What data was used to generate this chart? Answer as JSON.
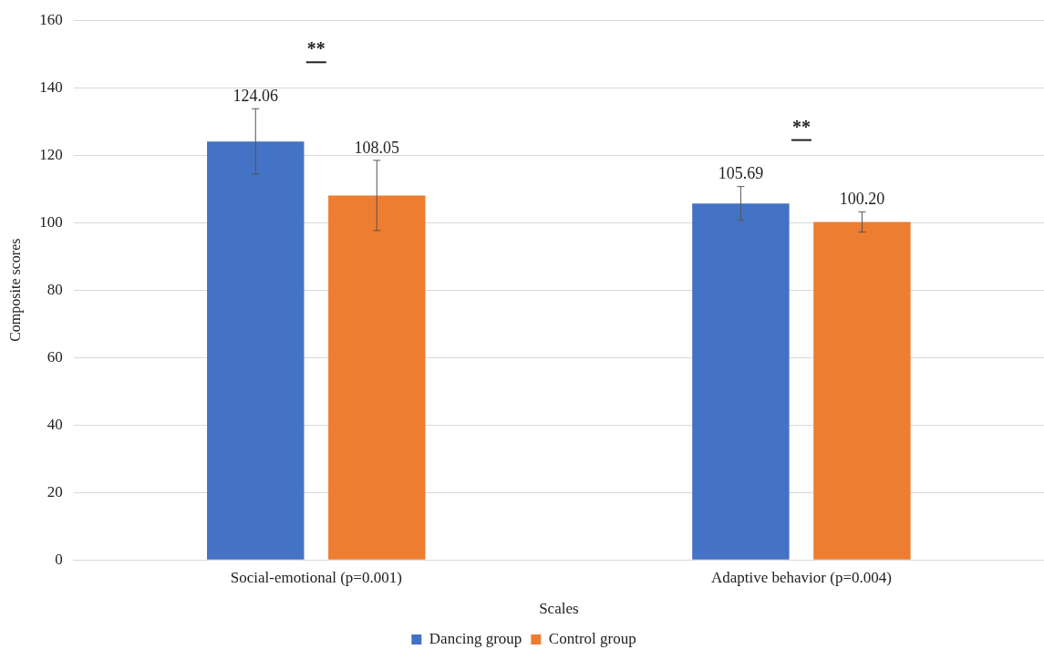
{
  "chart_data": {
    "type": "bar",
    "xlabel": "Scales",
    "ylabel": "Composite scores",
    "categories": [
      "Social-emotional (p=0.001)",
      "Adaptive behavior (p=0.004)"
    ],
    "series": [
      {
        "name": "Dancing group",
        "color": "#4472c4",
        "values": [
          124.06,
          105.69
        ],
        "errors": [
          9.7,
          5
        ],
        "value_labels": [
          "124.06",
          "105.69"
        ]
      },
      {
        "name": "Control group",
        "color": "#ed7d31",
        "values": [
          108.05,
          100.2
        ],
        "errors": [
          10.4,
          3
        ],
        "value_labels": [
          "108.05",
          "100.20"
        ]
      }
    ],
    "ylim": [
      0,
      160
    ],
    "yticks": [
      0,
      20,
      40,
      60,
      80,
      100,
      120,
      140,
      160
    ],
    "grid": "y",
    "legend": "bottom",
    "annotations": [
      "**",
      "**"
    ]
  }
}
